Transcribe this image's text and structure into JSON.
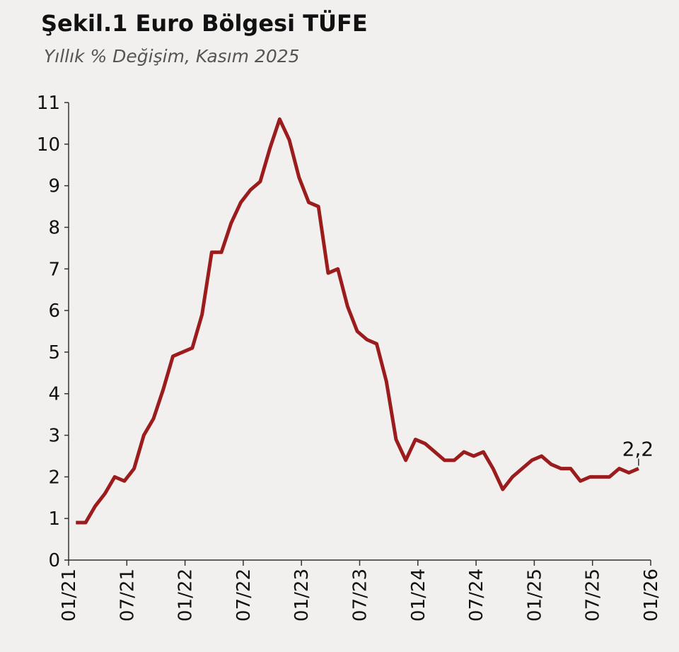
{
  "chart_data": {
    "type": "line",
    "title": "Şekil.1 Euro Bölgesi TÜFE",
    "subtitle": "Yıllık % Değişim, Kasım 2025",
    "categories": [
      "01/21",
      null,
      null,
      null,
      null,
      null,
      "07/21",
      null,
      null,
      null,
      null,
      null,
      "01/22",
      null,
      null,
      null,
      null,
      null,
      "07/22",
      null,
      null,
      null,
      null,
      null,
      "01/23",
      null,
      null,
      null,
      null,
      null,
      "07/23",
      null,
      null,
      null,
      null,
      null,
      "01/24",
      null,
      null,
      null,
      null,
      null,
      "07/24",
      null,
      null,
      null,
      null,
      null,
      "01/25",
      null,
      null,
      null,
      null,
      null,
      "07/25",
      null,
      null,
      null,
      null,
      null,
      "01/26"
    ],
    "series": [
      {
        "color": "#9b1c1c",
        "values": [
          0.9,
          0.9,
          1.3,
          1.6,
          2.0,
          1.9,
          2.2,
          3.0,
          3.4,
          4.1,
          4.9,
          5.0,
          5.1,
          5.9,
          7.4,
          7.4,
          8.1,
          8.6,
          8.9,
          9.1,
          9.9,
          10.6,
          10.1,
          9.2,
          8.6,
          8.5,
          6.9,
          7.0,
          6.1,
          5.5,
          5.3,
          5.2,
          4.3,
          2.9,
          2.4,
          2.9,
          2.8,
          2.6,
          2.4,
          2.4,
          2.6,
          2.5,
          2.6,
          2.2,
          1.7,
          2.0,
          2.2,
          2.4,
          2.5,
          2.3,
          2.2,
          2.2,
          1.9,
          2.0,
          2.0,
          2.0,
          2.2,
          2.1,
          2.2,
          null,
          null
        ],
        "value_labels": [
          null,
          null,
          null,
          null,
          null,
          null,
          null,
          null,
          null,
          null,
          null,
          null,
          null,
          null,
          null,
          null,
          null,
          null,
          null,
          null,
          null,
          null,
          null,
          null,
          null,
          null,
          null,
          null,
          null,
          null,
          null,
          null,
          null,
          null,
          null,
          null,
          null,
          null,
          null,
          null,
          null,
          null,
          null,
          null,
          null,
          null,
          null,
          null,
          null,
          null,
          null,
          null,
          null,
          null,
          null,
          null,
          null,
          null,
          "2,2",
          null,
          null
        ]
      }
    ],
    "ylim": [
      0,
      11
    ],
    "yticks": [
      0,
      1,
      2,
      3,
      4,
      5,
      6,
      7,
      8,
      9,
      10,
      11
    ],
    "grid": false
  }
}
